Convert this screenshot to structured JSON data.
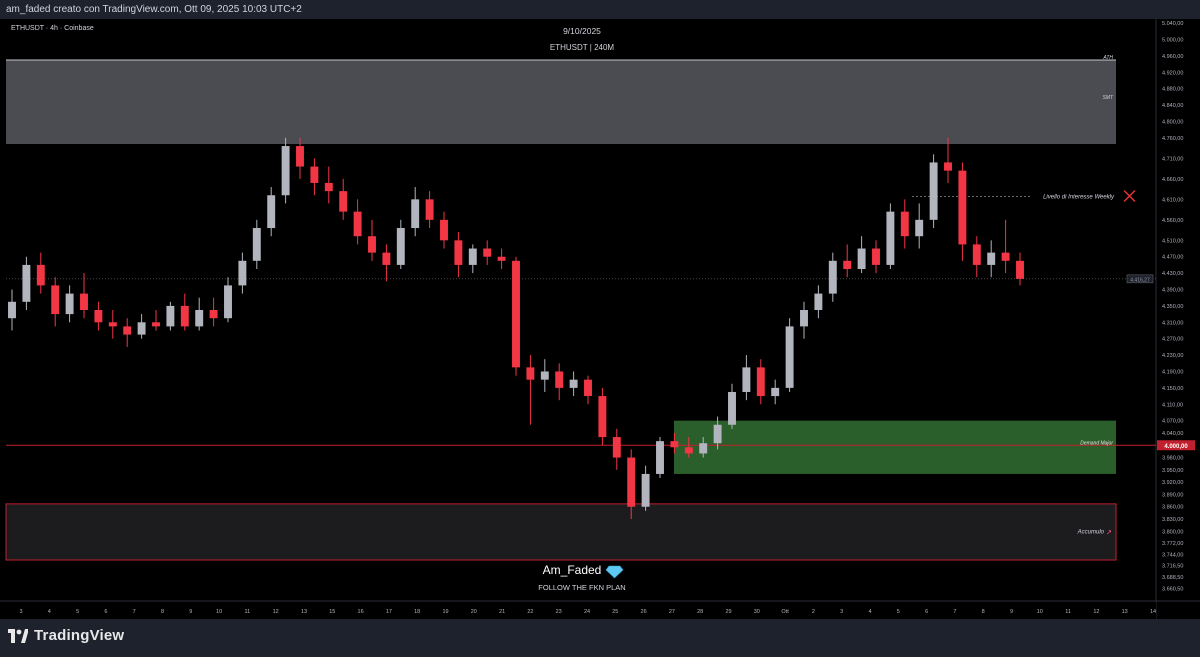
{
  "header": {
    "text": "am_faded creato con TradingView.com, Ott 09, 2025 10:03 UTC+2"
  },
  "symbol_label": "ETHUSDT · 4h · Coinbase",
  "brand": "TradingView",
  "colors": {
    "background": "#000000",
    "up_candle": "#b2b5be",
    "down_candle": "#f23645",
    "resistance_zone": "#4b4c52",
    "demand_zone": "#2a5e2a",
    "accumulation_zone": "#1c1c1f",
    "zone_border_red": "#c2202e",
    "price_line": "#c2202e"
  },
  "chart_data": {
    "type": "candlestick",
    "title": "9/10/2025",
    "subtitle": "ETHUSDT | 240M",
    "watermark_name": "Am_Faded",
    "watermark_icon": "diamond-icon",
    "watermark_tagline": "FOLLOW THE FKN PLAN",
    "ylim": [
      3630,
      5050
    ],
    "y_ticks": [
      "5.040,00",
      "5.000,00",
      "4.960,00",
      "4.920,00",
      "4.880,00",
      "4.840,00",
      "4.800,00",
      "4.760,00",
      "4.710,00",
      "4.660,00",
      "4.610,00",
      "4.560,00",
      "4.510,00",
      "4.470,00",
      "4.430,00",
      "4.390,00",
      "4.350,00",
      "4.310,00",
      "4.270,00",
      "4.230,00",
      "4.190,00",
      "4.150,00",
      "4.110,00",
      "4.070,00",
      "4.040,00",
      "4.010,00",
      "3.980,00",
      "3.950,00",
      "3.920,00",
      "3.890,00",
      "3.860,00",
      "3.830,00",
      "3.800,00",
      "3.772,00",
      "3.744,00",
      "3.716,50",
      "3.688,50",
      "3.660,50"
    ],
    "x_ticks": [
      "3",
      "4",
      "5",
      "6",
      "7",
      "8",
      "9",
      "10",
      "11",
      "12",
      "13",
      "15",
      "16",
      "17",
      "18",
      "19",
      "20",
      "21",
      "22",
      "23",
      "24",
      "25",
      "26",
      "27",
      "28",
      "29",
      "30",
      "Ott",
      "2",
      "3",
      "4",
      "5",
      "6",
      "7",
      "8",
      "9",
      "10",
      "11",
      "12",
      "13",
      "14"
    ],
    "current_price": "4.000,00",
    "last_price": "4.416,27",
    "levels": [
      {
        "name": "ATH",
        "price": 4950
      },
      {
        "name": "SMT",
        "price": 4860
      },
      {
        "name": "Livello di Interesse Weekly",
        "price": 4617
      },
      {
        "name": "Demand Major",
        "price": 4010
      }
    ],
    "zones": [
      {
        "name": "SMT",
        "from": 4745,
        "to": 4950
      },
      {
        "name": "Demand Major",
        "from": 3940,
        "to": 4070
      },
      {
        "name": "Accumulo",
        "from": 3730,
        "to": 3867
      }
    ],
    "series": [
      {
        "x": "3",
        "open": 4320,
        "high": 4390,
        "low": 4290,
        "close": 4360
      },
      {
        "x": "4",
        "open": 4360,
        "high": 4470,
        "low": 4340,
        "close": 4450
      },
      {
        "x": "4",
        "open": 4450,
        "high": 4480,
        "low": 4380,
        "close": 4400
      },
      {
        "x": "5",
        "open": 4400,
        "high": 4420,
        "low": 4300,
        "close": 4330
      },
      {
        "x": "5",
        "open": 4330,
        "high": 4400,
        "low": 4310,
        "close": 4380
      },
      {
        "x": "6",
        "open": 4380,
        "high": 4430,
        "low": 4320,
        "close": 4340
      },
      {
        "x": "6",
        "open": 4340,
        "high": 4360,
        "low": 4290,
        "close": 4310
      },
      {
        "x": "7",
        "open": 4310,
        "high": 4340,
        "low": 4270,
        "close": 4300
      },
      {
        "x": "7",
        "open": 4300,
        "high": 4320,
        "low": 4250,
        "close": 4280
      },
      {
        "x": "8",
        "open": 4280,
        "high": 4330,
        "low": 4270,
        "close": 4310
      },
      {
        "x": "8",
        "open": 4310,
        "high": 4340,
        "low": 4290,
        "close": 4300
      },
      {
        "x": "9",
        "open": 4300,
        "high": 4360,
        "low": 4290,
        "close": 4350
      },
      {
        "x": "9",
        "open": 4350,
        "high": 4380,
        "low": 4290,
        "close": 4300
      },
      {
        "x": "10",
        "open": 4300,
        "high": 4370,
        "low": 4290,
        "close": 4340
      },
      {
        "x": "10",
        "open": 4340,
        "high": 4370,
        "low": 4300,
        "close": 4320
      },
      {
        "x": "11",
        "open": 4320,
        "high": 4420,
        "low": 4310,
        "close": 4400
      },
      {
        "x": "11",
        "open": 4400,
        "high": 4480,
        "low": 4380,
        "close": 4460
      },
      {
        "x": "12",
        "open": 4460,
        "high": 4560,
        "low": 4440,
        "close": 4540
      },
      {
        "x": "12",
        "open": 4540,
        "high": 4640,
        "low": 4520,
        "close": 4620
      },
      {
        "x": "13",
        "open": 4620,
        "high": 4760,
        "low": 4600,
        "close": 4740
      },
      {
        "x": "13",
        "open": 4740,
        "high": 4760,
        "low": 4660,
        "close": 4690
      },
      {
        "x": "15",
        "open": 4690,
        "high": 4710,
        "low": 4620,
        "close": 4650
      },
      {
        "x": "15",
        "open": 4650,
        "high": 4690,
        "low": 4600,
        "close": 4630
      },
      {
        "x": "16",
        "open": 4630,
        "high": 4660,
        "low": 4560,
        "close": 4580
      },
      {
        "x": "16",
        "open": 4580,
        "high": 4610,
        "low": 4500,
        "close": 4520
      },
      {
        "x": "17",
        "open": 4520,
        "high": 4560,
        "low": 4460,
        "close": 4480
      },
      {
        "x": "17",
        "open": 4480,
        "high": 4500,
        "low": 4410,
        "close": 4450
      },
      {
        "x": "18",
        "open": 4450,
        "high": 4560,
        "low": 4440,
        "close": 4540
      },
      {
        "x": "18",
        "open": 4540,
        "high": 4640,
        "low": 4520,
        "close": 4610
      },
      {
        "x": "19",
        "open": 4610,
        "high": 4630,
        "low": 4540,
        "close": 4560
      },
      {
        "x": "19",
        "open": 4560,
        "high": 4580,
        "low": 4490,
        "close": 4510
      },
      {
        "x": "20",
        "open": 4510,
        "high": 4530,
        "low": 4420,
        "close": 4450
      },
      {
        "x": "20",
        "open": 4450,
        "high": 4500,
        "low": 4430,
        "close": 4490
      },
      {
        "x": "21",
        "open": 4490,
        "high": 4510,
        "low": 4450,
        "close": 4470
      },
      {
        "x": "21",
        "open": 4470,
        "high": 4490,
        "low": 4440,
        "close": 4460
      },
      {
        "x": "22",
        "open": 4460,
        "high": 4470,
        "low": 4180,
        "close": 4200
      },
      {
        "x": "22",
        "open": 4200,
        "high": 4230,
        "low": 4060,
        "close": 4170
      },
      {
        "x": "23",
        "open": 4170,
        "high": 4220,
        "low": 4140,
        "close": 4190
      },
      {
        "x": "23",
        "open": 4190,
        "high": 4210,
        "low": 4120,
        "close": 4150
      },
      {
        "x": "24",
        "open": 4150,
        "high": 4190,
        "low": 4130,
        "close": 4170
      },
      {
        "x": "24",
        "open": 4170,
        "high": 4180,
        "low": 4110,
        "close": 4130
      },
      {
        "x": "25",
        "open": 4130,
        "high": 4150,
        "low": 4010,
        "close": 4030
      },
      {
        "x": "25",
        "open": 4030,
        "high": 4050,
        "low": 3950,
        "close": 3980
      },
      {
        "x": "26",
        "open": 3980,
        "high": 4000,
        "low": 3830,
        "close": 3860
      },
      {
        "x": "26",
        "open": 3860,
        "high": 3960,
        "low": 3850,
        "close": 3940
      },
      {
        "x": "27",
        "open": 3940,
        "high": 4030,
        "low": 3930,
        "close": 4020
      },
      {
        "x": "27",
        "open": 4020,
        "high": 4040,
        "low": 3990,
        "close": 4005
      },
      {
        "x": "28",
        "open": 4005,
        "high": 4030,
        "low": 3980,
        "close": 3990
      },
      {
        "x": "28",
        "open": 3990,
        "high": 4030,
        "low": 3980,
        "close": 4015
      },
      {
        "x": "29",
        "open": 4015,
        "high": 4080,
        "low": 4000,
        "close": 4060
      },
      {
        "x": "29",
        "open": 4060,
        "high": 4160,
        "low": 4050,
        "close": 4140
      },
      {
        "x": "30",
        "open": 4140,
        "high": 4230,
        "low": 4120,
        "close": 4200
      },
      {
        "x": "30",
        "open": 4200,
        "high": 4220,
        "low": 4110,
        "close": 4130
      },
      {
        "x": "Ott",
        "open": 4130,
        "high": 4170,
        "low": 4110,
        "close": 4150
      },
      {
        "x": "Ott",
        "open": 4150,
        "high": 4320,
        "low": 4140,
        "close": 4300
      },
      {
        "x": "2",
        "open": 4300,
        "high": 4360,
        "low": 4270,
        "close": 4340
      },
      {
        "x": "2",
        "open": 4340,
        "high": 4400,
        "low": 4320,
        "close": 4380
      },
      {
        "x": "3",
        "open": 4380,
        "high": 4480,
        "low": 4360,
        "close": 4460
      },
      {
        "x": "3",
        "open": 4460,
        "high": 4500,
        "low": 4420,
        "close": 4440
      },
      {
        "x": "4",
        "open": 4440,
        "high": 4520,
        "low": 4430,
        "close": 4490
      },
      {
        "x": "4",
        "open": 4490,
        "high": 4510,
        "low": 4430,
        "close": 4450
      },
      {
        "x": "5",
        "open": 4450,
        "high": 4600,
        "low": 4440,
        "close": 4580
      },
      {
        "x": "5",
        "open": 4580,
        "high": 4610,
        "low": 4490,
        "close": 4520
      },
      {
        "x": "6",
        "open": 4520,
        "high": 4600,
        "low": 4490,
        "close": 4560
      },
      {
        "x": "6",
        "open": 4560,
        "high": 4720,
        "low": 4540,
        "close": 4700
      },
      {
        "x": "7",
        "open": 4700,
        "high": 4760,
        "low": 4650,
        "close": 4680
      },
      {
        "x": "7",
        "open": 4680,
        "high": 4700,
        "low": 4460,
        "close": 4500
      },
      {
        "x": "8",
        "open": 4500,
        "high": 4520,
        "low": 4420,
        "close": 4450
      },
      {
        "x": "8",
        "open": 4450,
        "high": 4510,
        "low": 4420,
        "close": 4480
      },
      {
        "x": "9",
        "open": 4480,
        "high": 4560,
        "low": 4430,
        "close": 4460
      },
      {
        "x": "9",
        "open": 4460,
        "high": 4480,
        "low": 4400,
        "close": 4416
      }
    ]
  }
}
